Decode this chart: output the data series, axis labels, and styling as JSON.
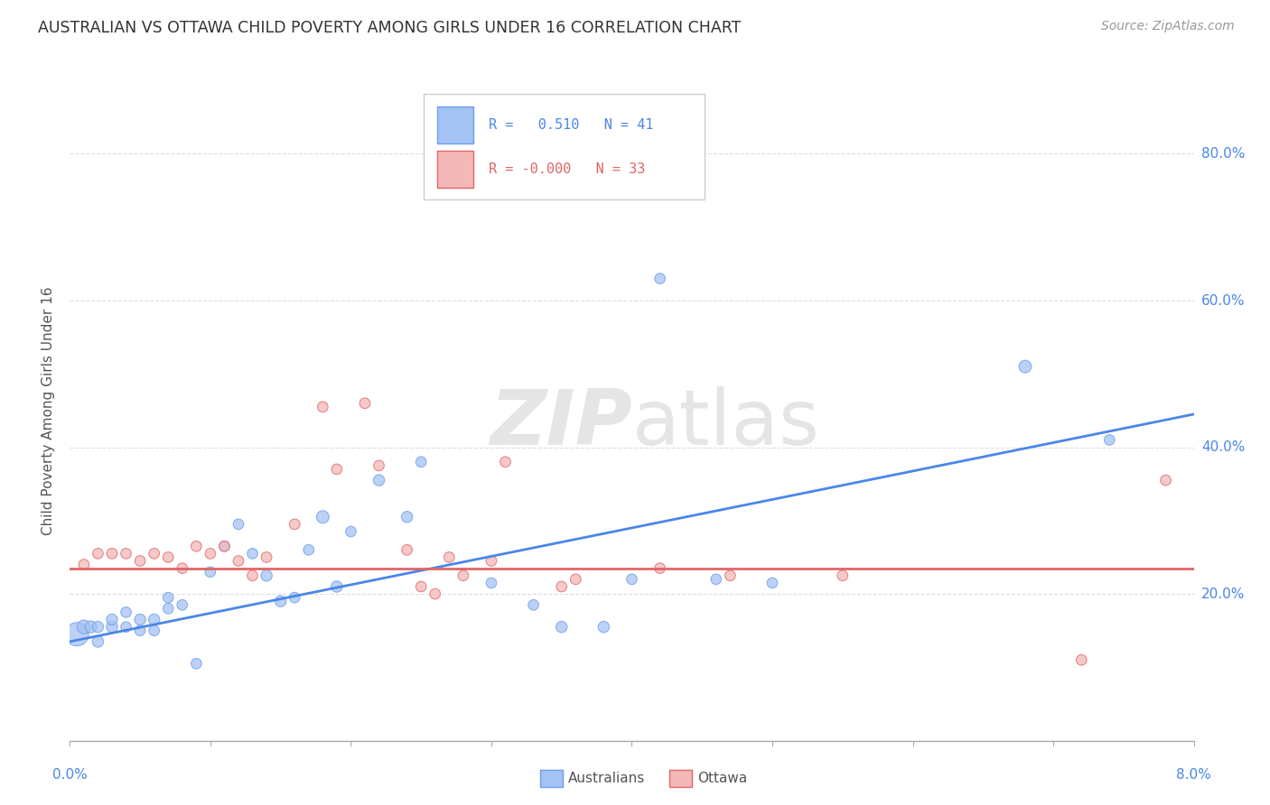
{
  "title": "AUSTRALIAN VS OTTAWA CHILD POVERTY AMONG GIRLS UNDER 16 CORRELATION CHART",
  "source": "Source: ZipAtlas.com",
  "ylabel": "Child Poverty Among Girls Under 16",
  "xlim": [
    0.0,
    0.08
  ],
  "ylim": [
    0.0,
    0.9
  ],
  "watermark": "ZIPatlas",
  "blue_color": "#a4c2f4",
  "pink_color": "#f4b8b8",
  "blue_edge_color": "#6d9eeb",
  "pink_edge_color": "#e06666",
  "blue_line_color": "#4a86e8",
  "pink_line_color": "#e06666",
  "blue_r": "0.510",
  "blue_n": "41",
  "pink_r": "-0.000",
  "pink_n": "33",
  "label_color": "#4a86e8",
  "aus_x": [
    0.0005,
    0.001,
    0.0015,
    0.002,
    0.002,
    0.003,
    0.003,
    0.004,
    0.004,
    0.005,
    0.005,
    0.006,
    0.006,
    0.007,
    0.007,
    0.008,
    0.009,
    0.01,
    0.011,
    0.012,
    0.013,
    0.014,
    0.015,
    0.016,
    0.017,
    0.018,
    0.019,
    0.02,
    0.022,
    0.024,
    0.025,
    0.03,
    0.033,
    0.035,
    0.038,
    0.04,
    0.042,
    0.046,
    0.05,
    0.068,
    0.074
  ],
  "aus_y": [
    0.145,
    0.155,
    0.155,
    0.155,
    0.135,
    0.155,
    0.165,
    0.175,
    0.155,
    0.165,
    0.15,
    0.165,
    0.15,
    0.195,
    0.18,
    0.185,
    0.105,
    0.23,
    0.265,
    0.295,
    0.255,
    0.225,
    0.19,
    0.195,
    0.26,
    0.305,
    0.21,
    0.285,
    0.355,
    0.305,
    0.38,
    0.215,
    0.185,
    0.155,
    0.155,
    0.22,
    0.63,
    0.22,
    0.215,
    0.51,
    0.41
  ],
  "aus_sizes": [
    350,
    120,
    90,
    80,
    80,
    80,
    80,
    70,
    70,
    80,
    70,
    80,
    70,
    70,
    70,
    70,
    70,
    70,
    70,
    70,
    70,
    80,
    80,
    70,
    70,
    100,
    80,
    70,
    80,
    80,
    70,
    70,
    70,
    80,
    80,
    70,
    70,
    70,
    70,
    100,
    70
  ],
  "ott_x": [
    0.001,
    0.002,
    0.003,
    0.004,
    0.005,
    0.006,
    0.007,
    0.008,
    0.009,
    0.01,
    0.011,
    0.012,
    0.013,
    0.014,
    0.016,
    0.018,
    0.019,
    0.021,
    0.022,
    0.024,
    0.025,
    0.026,
    0.027,
    0.028,
    0.03,
    0.031,
    0.035,
    0.036,
    0.042,
    0.047,
    0.055,
    0.072,
    0.078
  ],
  "ott_y": [
    0.24,
    0.255,
    0.255,
    0.255,
    0.245,
    0.255,
    0.25,
    0.235,
    0.265,
    0.255,
    0.265,
    0.245,
    0.225,
    0.25,
    0.295,
    0.455,
    0.37,
    0.46,
    0.375,
    0.26,
    0.21,
    0.2,
    0.25,
    0.225,
    0.245,
    0.38,
    0.21,
    0.22,
    0.235,
    0.225,
    0.225,
    0.11,
    0.355
  ],
  "ott_sizes": [
    70,
    70,
    70,
    70,
    70,
    70,
    70,
    70,
    70,
    70,
    70,
    70,
    70,
    70,
    70,
    70,
    70,
    70,
    70,
    70,
    70,
    70,
    70,
    70,
    70,
    70,
    70,
    70,
    70,
    70,
    70,
    70,
    70
  ],
  "blue_trend_x": [
    0.0,
    0.08
  ],
  "blue_trend_y": [
    0.135,
    0.445
  ],
  "pink_trend_y": [
    0.235,
    0.235
  ],
  "ytick_vals": [
    0.2,
    0.4,
    0.6,
    0.8
  ],
  "ytick_labels": [
    "20.0%",
    "40.0%",
    "60.0%",
    "80.0%"
  ],
  "xtick_left_label": "0.0%",
  "xtick_right_label": "8.0%"
}
